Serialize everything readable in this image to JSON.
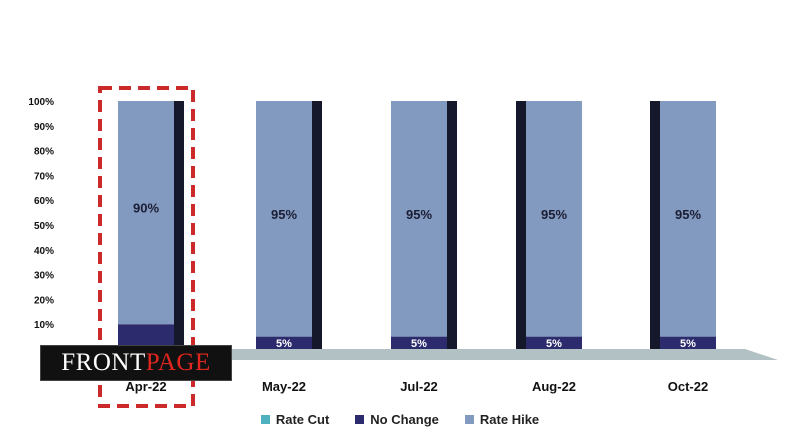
{
  "chart_data": {
    "type": "bar",
    "stacked": true,
    "categories": [
      "Apr-22",
      "May-22",
      "Jul-22",
      "Aug-22",
      "Oct-22"
    ],
    "series": [
      {
        "name": "Rate Cut",
        "values": [
          0,
          0,
          0,
          0,
          0
        ],
        "labels": [
          "",
          "",
          "",
          "",
          ""
        ]
      },
      {
        "name": "No Change",
        "values": [
          10,
          5,
          5,
          5,
          5
        ],
        "labels": [
          "",
          "5%",
          "5%",
          "5%",
          "5%"
        ]
      },
      {
        "name": "Rate Hike",
        "values": [
          90,
          95,
          95,
          95,
          95
        ],
        "labels": [
          "90%",
          "95%",
          "95%",
          "95%",
          "95%"
        ]
      }
    ],
    "yticks": [
      "10%",
      "20%",
      "30%",
      "40%",
      "50%",
      "60%",
      "70%",
      "80%",
      "90%",
      "100%"
    ],
    "ylim": [
      0,
      100
    ],
    "highlighted_category": "Apr-22",
    "legend_position": "bottom",
    "grid": false,
    "colors": {
      "rate_cut": "#4fb0bf",
      "no_change": "#2b2b6e",
      "rate_hike": "#8299c0",
      "bar_side": "#15182a",
      "floor": "#b2c2c4",
      "highlight_box": "#cc2a2a"
    }
  },
  "legend": {
    "items": [
      {
        "label": "Rate Cut",
        "color": "#4fb0bf"
      },
      {
        "label": "No Change",
        "color": "#2b2b6e"
      },
      {
        "label": "Rate Hike",
        "color": "#8299c0"
      }
    ]
  },
  "watermark": {
    "part1": "FRONT",
    "part2": "PAGE"
  }
}
